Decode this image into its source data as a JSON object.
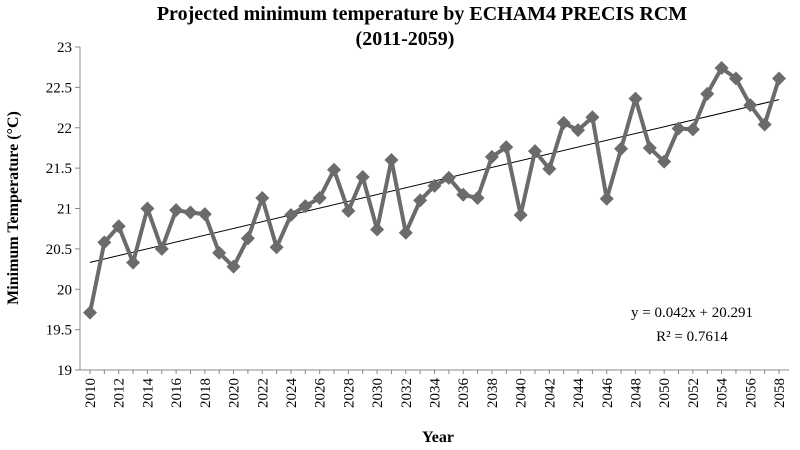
{
  "chart_data": {
    "type": "line",
    "title_line1": "Projected minimum temperature by ECHAM4 PRECIS RCM",
    "title_line2": "(2011-2059)",
    "xlabel": "Year",
    "ylabel": "Minimum Temperature (°C)",
    "ylim": [
      19,
      23
    ],
    "yticks": [
      "19",
      "19.5",
      "20",
      "20.5",
      "21",
      "21.5",
      "22",
      "22.5",
      "23"
    ],
    "xticks": [
      "2010",
      "2012",
      "2014",
      "2016",
      "2018",
      "2020",
      "2022",
      "2024",
      "2026",
      "2028",
      "2030",
      "2032",
      "2034",
      "2036",
      "2038",
      "2040",
      "2042",
      "2044",
      "2046",
      "2048",
      "2050",
      "2052",
      "2054",
      "2056",
      "2058"
    ],
    "grid": false,
    "x": [
      2010,
      2011,
      2012,
      2013,
      2014,
      2015,
      2016,
      2017,
      2018,
      2019,
      2020,
      2021,
      2022,
      2023,
      2024,
      2025,
      2026,
      2027,
      2028,
      2029,
      2030,
      2031,
      2032,
      2033,
      2034,
      2035,
      2036,
      2037,
      2038,
      2039,
      2040,
      2041,
      2042,
      2043,
      2044,
      2045,
      2046,
      2047,
      2048,
      2049,
      2050,
      2051,
      2052,
      2053,
      2054,
      2055,
      2056,
      2057,
      2058
    ],
    "series": [
      {
        "color": "#6b6b6b",
        "marker": "diamond",
        "values": [
          19.71,
          20.58,
          20.78,
          20.33,
          21.0,
          20.5,
          20.98,
          20.95,
          20.93,
          20.45,
          20.28,
          20.63,
          21.13,
          20.52,
          20.92,
          21.03,
          21.13,
          21.48,
          20.97,
          21.39,
          20.74,
          21.6,
          20.7,
          21.1,
          21.28,
          21.38,
          21.17,
          21.13,
          21.64,
          21.76,
          20.92,
          21.71,
          21.49,
          22.06,
          21.97,
          22.13,
          21.12,
          21.74,
          22.36,
          21.75,
          21.58,
          21.99,
          21.98,
          22.42,
          22.74,
          22.61,
          22.28,
          22.04,
          22.61
        ]
      }
    ],
    "trendline": {
      "equation": "y = 0.042x + 20.291",
      "r2": "R² = 0.7614",
      "color": "#000000"
    }
  }
}
